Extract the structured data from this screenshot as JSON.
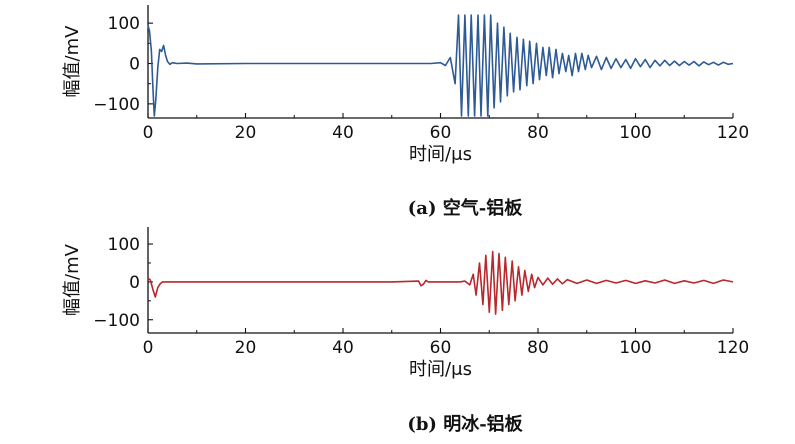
{
  "chart_data": [
    {
      "type": "line",
      "caption": "(a) 空气-铝板",
      "xlabel": "时间/μs",
      "ylabel": "幅值/mV",
      "xlim": [
        0,
        120
      ],
      "ylim": [
        -135,
        145
      ],
      "xticks": [
        "0",
        "20",
        "40",
        "60",
        "80",
        "100",
        "120"
      ],
      "yticks": [
        "100",
        "0",
        "−100"
      ],
      "grid": false,
      "color": "#2e5a96",
      "series": [
        {
          "x": [
            0,
            0.3,
            0.7,
            1.0,
            1.3,
            1.6,
            2.0,
            2.4,
            2.8,
            3.2,
            3.6,
            4.0,
            4.5,
            5.0,
            6,
            8,
            10,
            20,
            30,
            40,
            50,
            58,
            60,
            61,
            62,
            63,
            63.7,
            64.3,
            65,
            65.7,
            66.3,
            67,
            67.7,
            68.3,
            69,
            69.7,
            70.3,
            71,
            71.7,
            72.3,
            73,
            73.7,
            74.3,
            75,
            75.7,
            76.3,
            77,
            77.7,
            78.3,
            79,
            79.7,
            80.3,
            81,
            81.7,
            82.3,
            83,
            83.7,
            84.3,
            85,
            85.7,
            86.3,
            87,
            87.7,
            88.3,
            89,
            89.7,
            90.3,
            91,
            92,
            93,
            94,
            95,
            96,
            97,
            98,
            99,
            100,
            101,
            102,
            103,
            104,
            105,
            106,
            107,
            108,
            109,
            110,
            111,
            112,
            113,
            114,
            115,
            116,
            117,
            118,
            119,
            120
          ],
          "y": [
            95,
            80,
            30,
            -60,
            -130,
            -90,
            -10,
            35,
            30,
            45,
            20,
            5,
            -2,
            2,
            0,
            1,
            -1,
            0,
            0,
            0,
            0,
            0,
            2,
            -5,
            15,
            -50,
            120,
            -130,
            120,
            -130,
            120,
            -130,
            120,
            -130,
            120,
            -130,
            120,
            -110,
            100,
            -95,
            90,
            -80,
            75,
            -70,
            65,
            -65,
            60,
            -55,
            55,
            -50,
            50,
            -40,
            40,
            -30,
            40,
            -35,
            35,
            -25,
            25,
            -20,
            20,
            -30,
            25,
            -20,
            25,
            -15,
            20,
            -10,
            18,
            -15,
            15,
            -12,
            12,
            -10,
            10,
            -12,
            12,
            -8,
            10,
            -10,
            8,
            -6,
            8,
            -5,
            6,
            -5,
            5,
            -4,
            5,
            -6,
            4,
            -3,
            3,
            -4,
            3,
            -2,
            0
          ]
        }
      ]
    },
    {
      "type": "line",
      "caption": "(b) 明冰-铝板",
      "xlabel": "时间/μs",
      "ylabel": "幅值/mV",
      "xlim": [
        0,
        120
      ],
      "ylim": [
        -135,
        145
      ],
      "xticks": [
        "0",
        "20",
        "40",
        "60",
        "80",
        "100",
        "120"
      ],
      "yticks": [
        "100",
        "0",
        "−100"
      ],
      "grid": false,
      "color": "#b8282c",
      "series": [
        {
          "x": [
            0,
            0.5,
            1.0,
            1.5,
            2.0,
            2.5,
            3.0,
            4.0,
            5.0,
            10,
            20,
            30,
            40,
            50,
            55.5,
            56.0,
            56.5,
            57.0,
            57.5,
            60,
            64,
            65,
            66,
            66.7,
            67.3,
            68,
            68.7,
            69.3,
            70,
            70.7,
            71.3,
            72,
            72.7,
            73.3,
            74,
            74.7,
            75.3,
            76,
            76.7,
            77.3,
            78,
            78.7,
            79.3,
            80,
            81,
            82,
            83,
            84,
            85,
            86,
            88,
            90,
            92,
            94,
            96,
            98,
            100,
            102,
            104,
            106,
            108,
            110,
            112,
            114,
            116,
            118,
            120
          ],
          "y": [
            10,
            5,
            -20,
            -40,
            -15,
            -5,
            0,
            0,
            0,
            0,
            0,
            0,
            0,
            0,
            2,
            -10,
            -6,
            4,
            0,
            0,
            0,
            2,
            -8,
            20,
            -35,
            50,
            -60,
            70,
            -80,
            80,
            -85,
            75,
            -75,
            65,
            -60,
            55,
            -50,
            40,
            -35,
            30,
            -25,
            20,
            -15,
            12,
            -8,
            10,
            -6,
            8,
            -5,
            6,
            -4,
            5,
            -4,
            4,
            -3,
            4,
            -4,
            3,
            -3,
            5,
            -4,
            3,
            -3,
            4,
            -4,
            5,
            0
          ]
        }
      ]
    }
  ]
}
